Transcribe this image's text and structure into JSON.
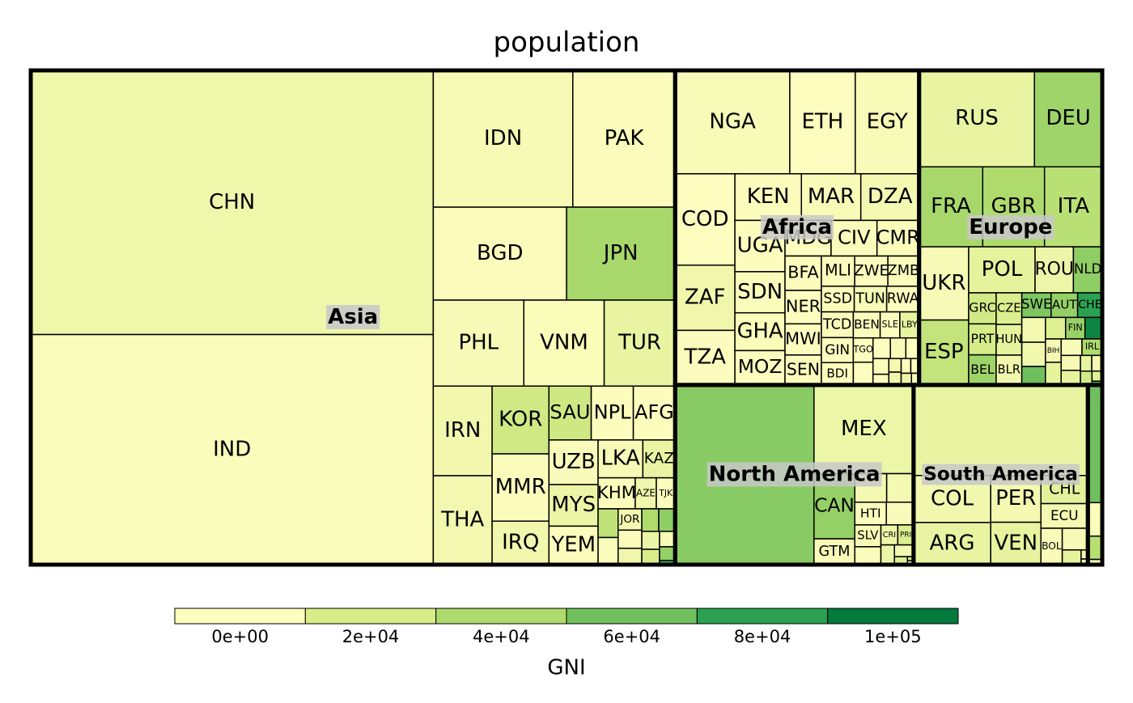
{
  "chart_data": {
    "type": "treemap",
    "title": "population",
    "color_title": "GNI",
    "colorbar": {
      "ticks": [
        {
          "value": 0,
          "label": "0e+00"
        },
        {
          "value": 20000,
          "label": "2e+04"
        },
        {
          "value": 40000,
          "label": "4e+04"
        },
        {
          "value": 60000,
          "label": "6e+04"
        },
        {
          "value": 80000,
          "label": "8e+04"
        },
        {
          "value": 100000,
          "label": "1e+05"
        }
      ],
      "colors": [
        "#fdfdbf",
        "#d8ed8a",
        "#aedb6c",
        "#6fbf5e",
        "#2ca152",
        "#047a3d"
      ]
    },
    "groups": [
      {
        "name": "Asia",
        "labels": [
          "CHN",
          "IND",
          "IDN",
          "PAK",
          "BGD",
          "JPN",
          "PHL",
          "VNM",
          "TUR",
          "IRN",
          "THA",
          "KOR",
          "MMR",
          "IRQ",
          "SAU",
          "NPL",
          "AFG",
          "UZB",
          "MYS",
          "YEM",
          "LKA",
          "KAZ",
          "KHM",
          "AZE",
          "TJK",
          null,
          null,
          "JOR",
          null,
          null,
          null,
          null,
          null,
          null,
          null,
          null,
          null
        ],
        "values": [
          1338612970,
          1166079220,
          240271522,
          176242949,
          156050883,
          127078679,
          97976603,
          86967524,
          76805524,
          66429284,
          65905410,
          48508972,
          48137741,
          31129225,
          28686633,
          28563377,
          28400000,
          27606007,
          25715819,
          23822783,
          21324791,
          15399437,
          14494293,
          8238672,
          7349145,
          7233701,
          6834942,
          6342948,
          5431747,
          4884887,
          4798491,
          4657542,
          4017095,
          3418085,
          3041142,
          2691158,
          833285
        ],
        "gni": [
          7400,
          1500,
          3600,
          1300,
          1000,
          42000,
          3300,
          1700,
          10800,
          6600,
          5800,
          24000,
          1200,
          6300,
          25000,
          700,
          650,
          2000,
          10000,
          1300,
          3400,
          11000,
          1000,
          7300,
          1100,
          32000,
          1400,
          4900,
          1200,
          6900,
          40000,
          50000,
          9500,
          20000,
          3700,
          48000,
          75000
        ]
      },
      {
        "name": "Africa",
        "labels": [
          "NGA",
          "ETH",
          "EGY",
          "COD",
          "ZAF",
          "TZA",
          "KEN",
          "MAR",
          "DZA",
          "UGA",
          "SDN",
          "GHA",
          "MOZ",
          "MDG",
          "CIV",
          "CMR",
          "BFA",
          "NER",
          "MWI",
          "SEN",
          "MLI",
          "ZWE",
          "ZMB",
          "SSD",
          "TUN",
          "RWA",
          "TCD",
          "GIN",
          "BDI",
          "BEN",
          "SLE",
          "LBY",
          "TGO",
          null,
          null,
          null,
          null,
          null,
          null,
          null,
          null,
          null,
          null,
          null,
          null
        ],
        "values": [
          149229090,
          85237338,
          83082869,
          68692542,
          49052489,
          41048532,
          39002772,
          34859364,
          34178188,
          32369558,
          25946220,
          23832495,
          21669278,
          20653556,
          20617068,
          18879301,
          15746232,
          15306252,
          14268711,
          13711597,
          12666987,
          12619600,
          11862740,
          10625176,
          10486339,
          10473282,
          10329208,
          10057975,
          8988091,
          8791832,
          6440053,
          6310434,
          6019877,
          5647168,
          4511488,
          4012809,
          3441790,
          3129486,
          2130819,
          2108665,
          1990876,
          1782893,
          1533964,
          1514993,
          1123913
        ],
        "gni": [
          2500,
          450,
          3100,
          400,
          7200,
          850,
          1200,
          3000,
          5300,
          600,
          1500,
          1700,
          550,
          450,
          1400,
          1300,
          700,
          400,
          350,
          1100,
          700,
          850,
          1700,
          1000,
          4200,
          650,
          1000,
          500,
          250,
          800,
          600,
          12000,
          550,
          500,
          500,
          2500,
          400,
          1200,
          1300,
          5500,
          7400,
          500,
          600,
          10000,
          3000
        ]
      },
      {
        "name": "Europe",
        "labels": [
          "RUS",
          "DEU",
          "FRA",
          "GBR",
          "ITA",
          "UKR",
          "ESP",
          "POL",
          "ROU",
          "NLD",
          "GRC",
          "PRT",
          "BEL",
          "CZE",
          "HUN",
          "BLR",
          "SWE",
          "AUT",
          "CHE",
          null,
          null,
          null,
          null,
          "FIN",
          null,
          "BIH",
          null,
          null,
          "IRL",
          null,
          null,
          null,
          null,
          null,
          null,
          null
        ],
        "values": [
          140041247,
          82329758,
          64057792,
          62262000,
          58126212,
          45700395,
          40525002,
          38482919,
          22215421,
          16715999,
          10737428,
          10707924,
          10414336,
          10211904,
          9905596,
          9648533,
          9059651,
          8210281,
          7604467,
          7379339,
          7204687,
          5500510,
          5463046,
          5250275,
          4676305,
          4613414,
          4489409,
          4320748,
          4203200,
          3639453,
          3555179,
          2231503,
          2066718,
          2005692,
          1299371,
          491775
        ],
        "gni": [
          11000,
          45000,
          42000,
          40000,
          35000,
          3500,
          30000,
          13000,
          8500,
          50000,
          23000,
          21000,
          45000,
          18000,
          13000,
          6500,
          55000,
          48000,
          80000,
          5500,
          6500,
          60000,
          17000,
          47000,
          95000,
          4700,
          13000,
          2000,
          40000,
          4000,
          12000,
          12000,
          4500,
          23000,
          15000,
          75000
        ]
      },
      {
        "name": "North America",
        "labels": [
          null,
          "MEX",
          "CAN",
          "GTM",
          null,
          null,
          "HTI",
          null,
          "SLV",
          null,
          "CRI",
          "PRI",
          null,
          null,
          null,
          null,
          null
        ],
        "values": [
          313973000,
          111211789,
          33487208,
          13276517,
          11451652,
          9650054,
          9035536,
          7792854,
          7185218,
          5891199,
          4253877,
          3971020,
          3360474,
          2825928,
          1310000,
          309156,
          307899
        ],
        "gni": [
          52000,
          9000,
          48000,
          3000,
          5500,
          5000,
          700,
          2000,
          3500,
          1500,
          8500,
          18000,
          9000,
          5000,
          16000,
          21000,
          4000
        ]
      },
      {
        "name": "South America",
        "labels": [
          null,
          "COL",
          "ARG",
          "PER",
          "VEN",
          "CHL",
          "ECU",
          "BOL",
          null,
          null,
          null,
          null
        ],
        "values": [
          198739269,
          45644023,
          40913584,
          29546963,
          26814843,
          16601707,
          14573101,
          9775246,
          6995655,
          3494382,
          772298,
          481267
        ],
        "gni": [
          11000,
          6500,
          11000,
          5500,
          12000,
          14000,
          5000,
          2200,
          3500,
          13000,
          3500,
          8500
        ]
      },
      {
        "name": null,
        "labels": [
          null,
          null,
          null,
          null
        ],
        "values": [
          21262641,
          6057263,
          4213418,
          944720
        ],
        "gni": [
          60000,
          1800,
          36000,
          4000
        ]
      }
    ]
  }
}
